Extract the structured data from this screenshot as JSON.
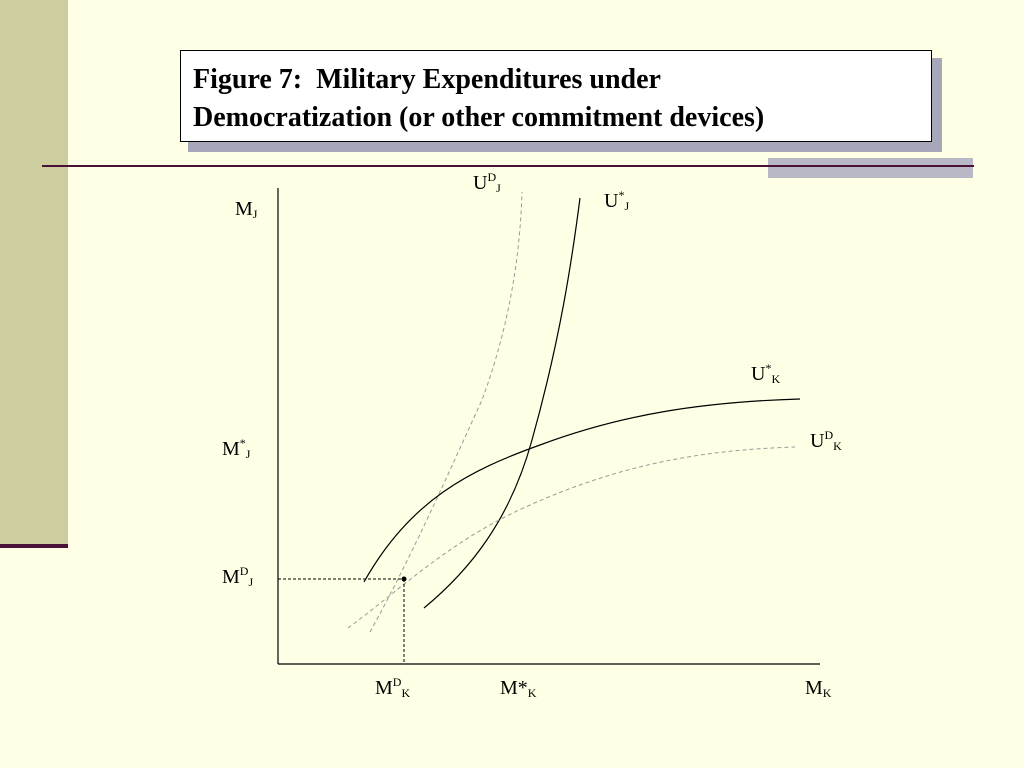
{
  "title": {
    "line1": "Figure 7:  Military Expenditures under",
    "line2": "Democratization (or other commitment devices)"
  },
  "axes": {
    "y_axis_label": {
      "base": "M",
      "sub": "J"
    },
    "x_axis_label": {
      "base": "M",
      "sub": "K"
    }
  },
  "curves": {
    "ud_j": {
      "base": "U",
      "sup": "D",
      "sub": "J",
      "style": "dashed",
      "color": "#9A9A9A"
    },
    "ustar_j": {
      "base": "U",
      "sup": "*",
      "sub": "J",
      "style": "solid",
      "color": "#000000"
    },
    "ustar_k": {
      "base": "U",
      "sup": "*",
      "sub": "K",
      "style": "solid",
      "color": "#000000"
    },
    "ud_k": {
      "base": "U",
      "sup": "D",
      "sub": "K",
      "style": "dashed",
      "color": "#9A9A9A"
    }
  },
  "y_marks": {
    "mstar_j": {
      "base": "M",
      "sup": "*",
      "sub": "J"
    },
    "md_j": {
      "base": "M",
      "sup": "D",
      "sub": "J"
    }
  },
  "x_marks": {
    "md_k": {
      "base": "M",
      "sup": "D",
      "sub": "K"
    },
    "mstar_k": {
      "base": "M*",
      "sub": "K"
    }
  },
  "colors": {
    "background": "#FFFFE5",
    "left_band": "#CDCD9E",
    "accent_rule": "#4A1038",
    "title_shadow": "#A7A7BA"
  }
}
